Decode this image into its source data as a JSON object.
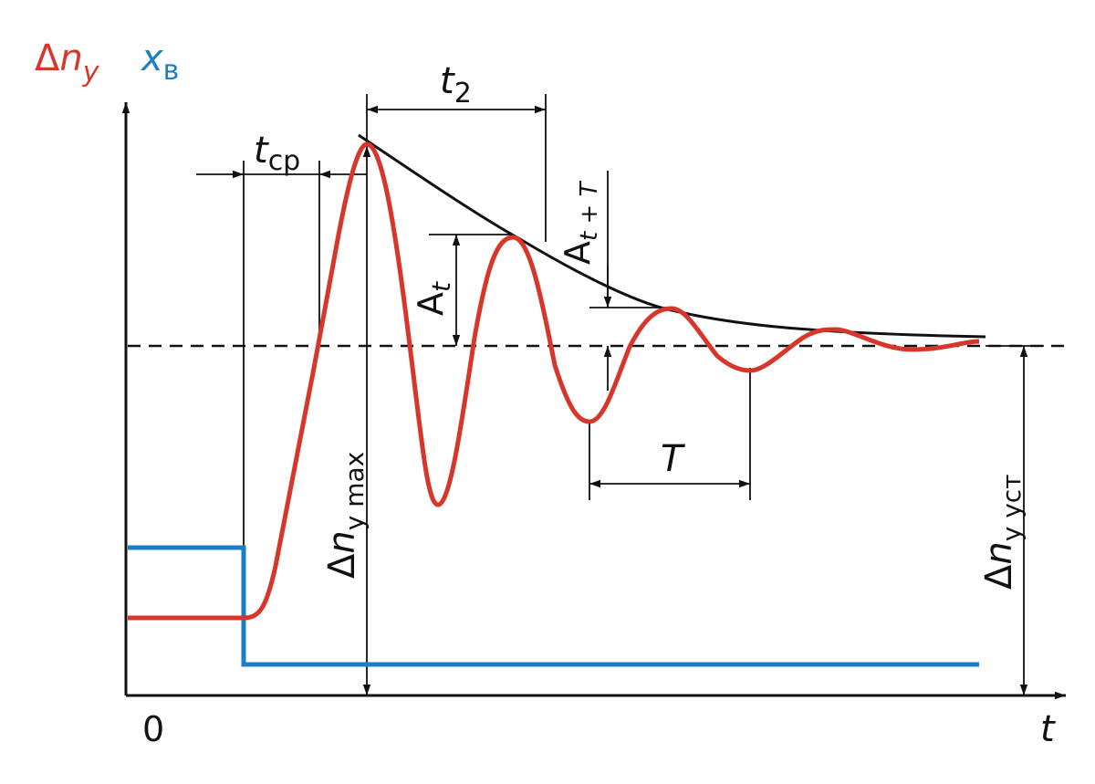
{
  "labels": {
    "delta": "Δ",
    "n": "n",
    "y": "y",
    "x": "x",
    "v": "в",
    "origin": "0",
    "t_axis": "t",
    "t2_t": "t",
    "t2_sub": "2",
    "tcp_t": "t",
    "tcp_sub": "ср",
    "At_A": "A",
    "At_sub": "t",
    "AtT_A": "A",
    "AtT_sub": "t + T",
    "T": "T",
    "nmax_sub": "y max",
    "nust_sub": "y уст"
  },
  "colors": {
    "response": "#d7362b",
    "input": "#1b7fc1",
    "envelope": "#111111",
    "axes": "#111111",
    "axis_label_response": "#d7362b",
    "axis_label_input": "#1b7fc1"
  }
}
